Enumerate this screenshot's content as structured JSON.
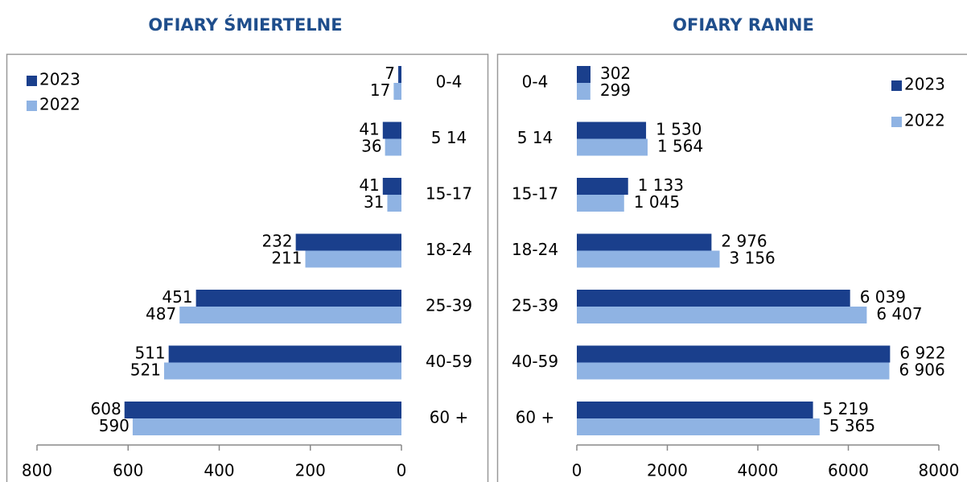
{
  "chart_data": [
    {
      "type": "bar",
      "orientation": "horizontal",
      "title": "OFIARY ŚMIERTELNE",
      "categories": [
        "0-4",
        "5 14",
        "15-17",
        "18-24",
        "25-39",
        "40-59",
        "60 +"
      ],
      "series": [
        {
          "name": "2023",
          "color": "#1a3f8c",
          "values": [
            7,
            41,
            41,
            232,
            451,
            511,
            608
          ]
        },
        {
          "name": "2022",
          "color": "#8fb3e3",
          "values": [
            17,
            36,
            31,
            211,
            487,
            521,
            590
          ]
        }
      ],
      "xlim": [
        800,
        0
      ],
      "xticks": [
        800,
        600,
        400,
        200,
        0
      ],
      "legend": "upper left"
    },
    {
      "type": "bar",
      "orientation": "horizontal",
      "title": "OFIARY RANNE",
      "categories": [
        "0-4",
        "5 14",
        "15-17",
        "18-24",
        "25-39",
        "40-59",
        "60 +"
      ],
      "series": [
        {
          "name": "2023",
          "color": "#1a3f8c",
          "values": [
            302,
            1530,
            1133,
            2976,
            6039,
            6922,
            5219
          ],
          "value_labels": [
            "302",
            "1 530",
            "1 133",
            "2 976",
            "6 039",
            "6 922",
            "5 219"
          ]
        },
        {
          "name": "2022",
          "color": "#8fb3e3",
          "values": [
            299,
            1564,
            1045,
            3156,
            6407,
            6906,
            5365
          ],
          "value_labels": [
            "299",
            "1 564",
            "1 045",
            "3 156",
            "6 407",
            "6 906",
            "5 365"
          ]
        }
      ],
      "xlim": [
        0,
        8000
      ],
      "xticks": [
        0,
        2000,
        4000,
        6000,
        8000
      ],
      "legend": "upper right"
    }
  ]
}
